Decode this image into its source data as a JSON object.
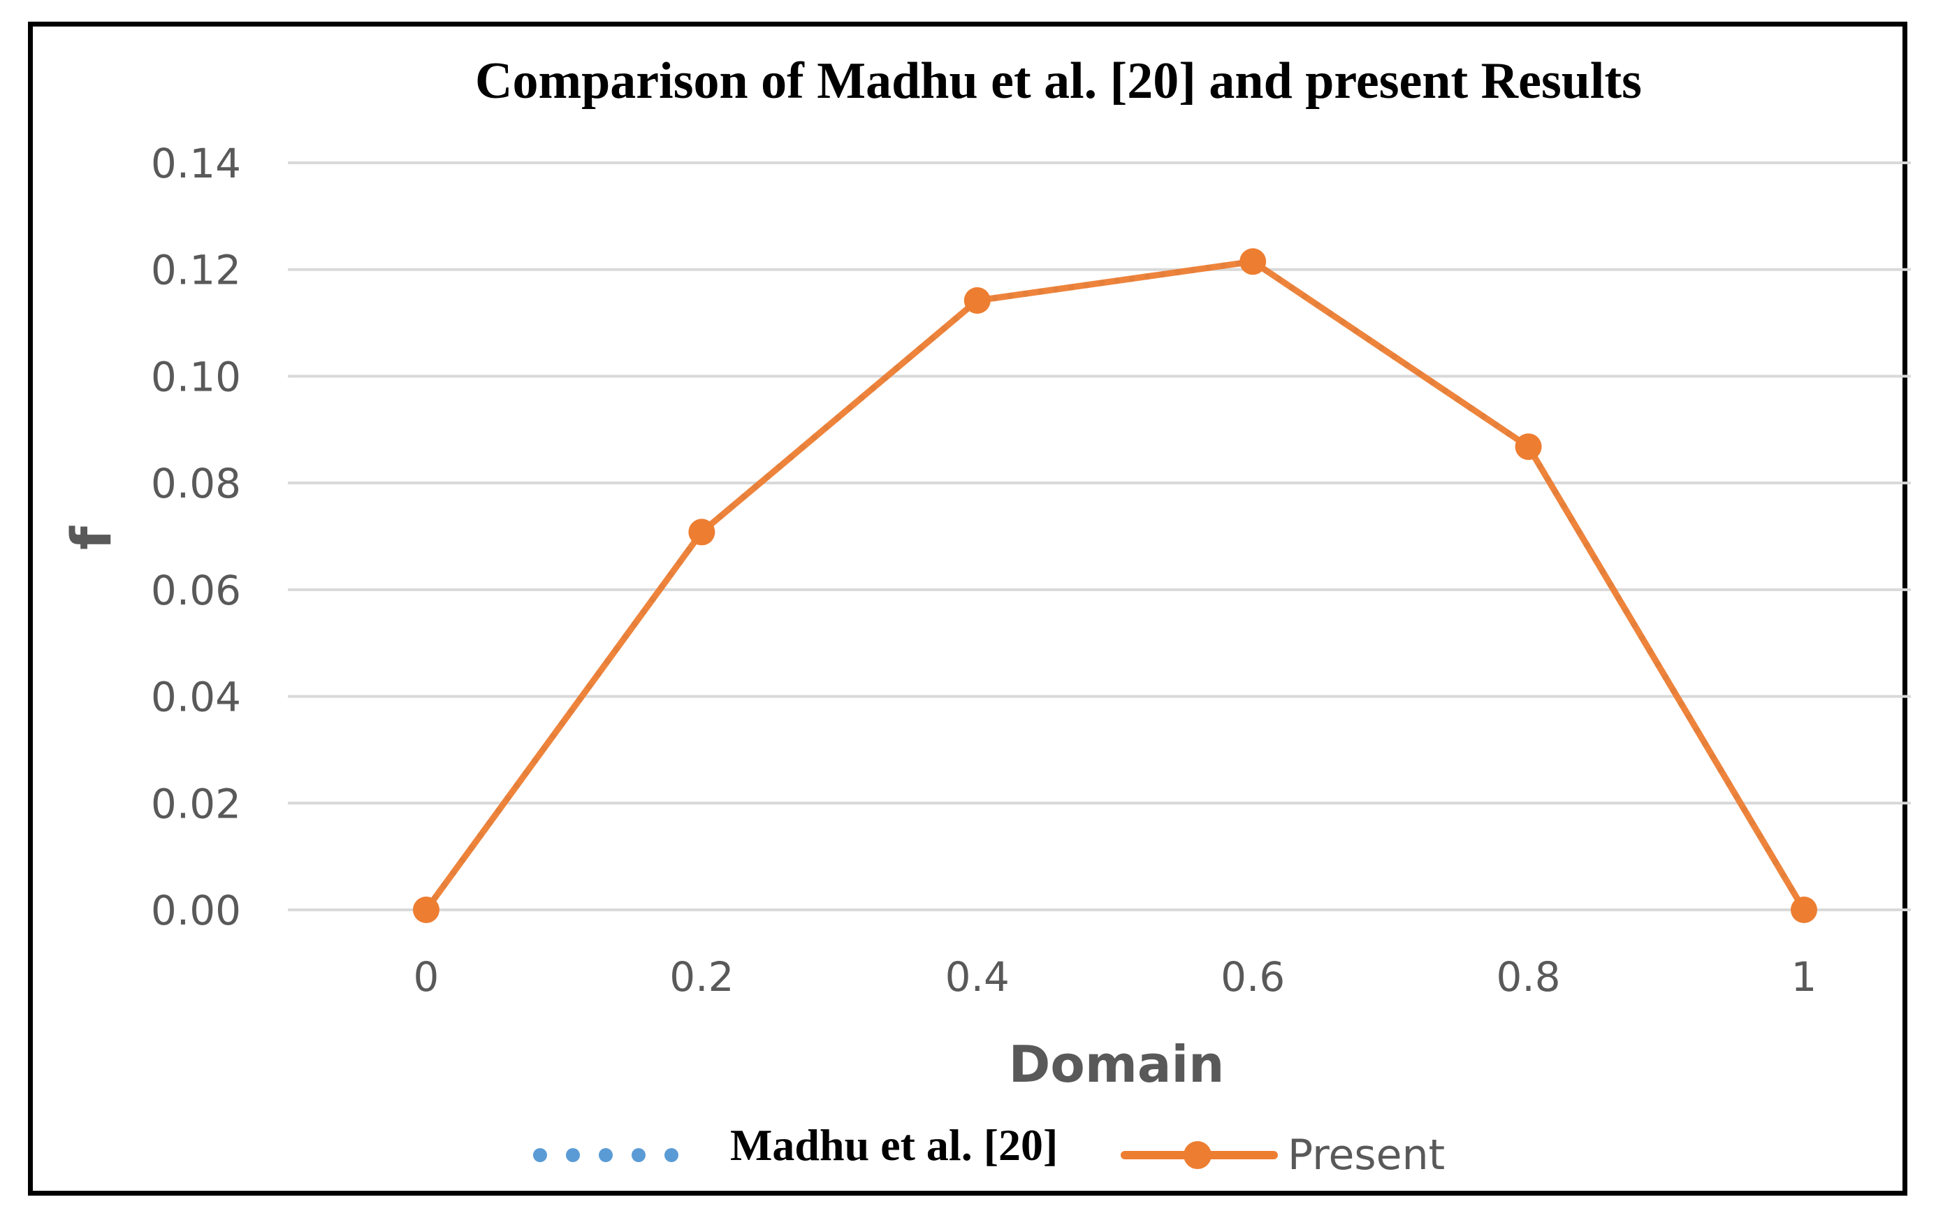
{
  "chart_data": {
    "type": "line",
    "title": "Comparison of Madhu et al. [20] and present Results",
    "xlabel": "Domain",
    "ylabel": "f",
    "xlim": [
      0,
      1
    ],
    "ylim": [
      0,
      0.14
    ],
    "x_ticks": [
      0,
      0.2,
      0.4,
      0.6,
      0.8,
      1
    ],
    "x_tick_labels": [
      "0",
      "0.2",
      "0.4",
      "0.6",
      "0.8",
      "1"
    ],
    "y_ticks": [
      0,
      0.02,
      0.04,
      0.06,
      0.08,
      0.1,
      0.12,
      0.14
    ],
    "y_tick_labels": [
      "0.00",
      "0.02",
      "0.04",
      "0.06",
      "0.08",
      "0.10",
      "0.12",
      "0.14"
    ],
    "grid": true,
    "legend_position": "bottom",
    "x": [
      0,
      0.2,
      0.4,
      0.6,
      0.8,
      1
    ],
    "series": [
      {
        "name": "Madhu et al. [20]",
        "style": "dotted",
        "color": "#5B9BD5",
        "values": [
          0,
          0.0708,
          0.1142,
          0.1215,
          0.0868,
          0
        ]
      },
      {
        "name": "Present",
        "style": "line-marker",
        "color": "#ED7D31",
        "values": [
          0,
          0.0708,
          0.1142,
          0.1215,
          0.0868,
          0
        ]
      }
    ]
  }
}
